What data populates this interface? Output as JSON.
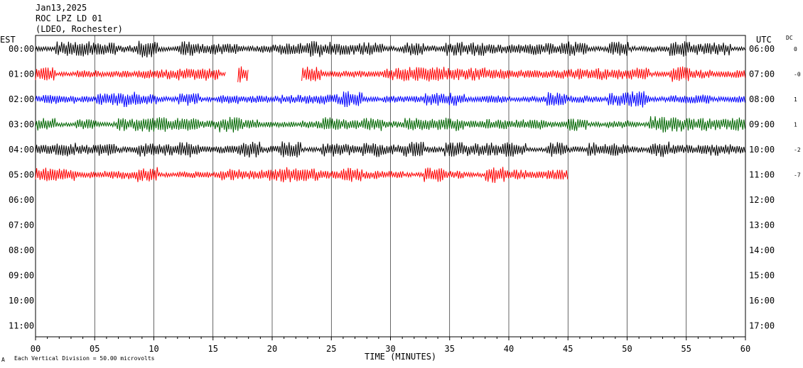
{
  "header": {
    "date": "Jan13,2025",
    "station": "ROC LPZ LD 01",
    "network": "(LDEO, Rochester)"
  },
  "chart_data": {
    "type": "line",
    "title": "Jan13,2025",
    "left_axis_title": "EST",
    "right_axis_title": "UTC",
    "dc_title": "DC",
    "xlabel": "TIME (MINUTES)",
    "xlim": [
      0,
      60
    ],
    "x_ticks": [
      "00",
      "05",
      "10",
      "15",
      "20",
      "25",
      "30",
      "35",
      "40",
      "45",
      "50",
      "55",
      "60"
    ],
    "rows_est": [
      "00:00",
      "01:00",
      "02:00",
      "03:00",
      "04:00",
      "05:00",
      "06:00",
      "07:00",
      "08:00",
      "09:00",
      "10:00",
      "11:00"
    ],
    "rows_utc": [
      "06:00",
      "07:00",
      "08:00",
      "09:00",
      "10:00",
      "11:00",
      "12:00",
      "13:00",
      "14:00",
      "15:00",
      "16:00",
      "17:00"
    ],
    "dc_values": [
      "0",
      "-0",
      "1",
      "1",
      "-2",
      "-7"
    ],
    "series": [
      {
        "row": 0,
        "color": "#000000",
        "segments": [
          [
            0,
            60
          ]
        ]
      },
      {
        "row": 1,
        "color": "#ff0000",
        "segments": [
          [
            0,
            16.1
          ],
          [
            17.1,
            18.0
          ],
          [
            22.5,
            60
          ]
        ]
      },
      {
        "row": 2,
        "color": "#0000ff",
        "segments": [
          [
            0,
            60
          ]
        ]
      },
      {
        "row": 3,
        "color": "#006600",
        "segments": [
          [
            0,
            60
          ]
        ]
      },
      {
        "row": 4,
        "color": "#000000",
        "segments": [
          [
            0,
            60
          ]
        ]
      },
      {
        "row": 5,
        "color": "#ff0000",
        "segments": [
          [
            0,
            45
          ]
        ]
      }
    ],
    "grid": "vertical lines every 5 minutes",
    "footer_note": "Each Vertical Division =   50.00 microvolts",
    "footer_mark": "A"
  }
}
